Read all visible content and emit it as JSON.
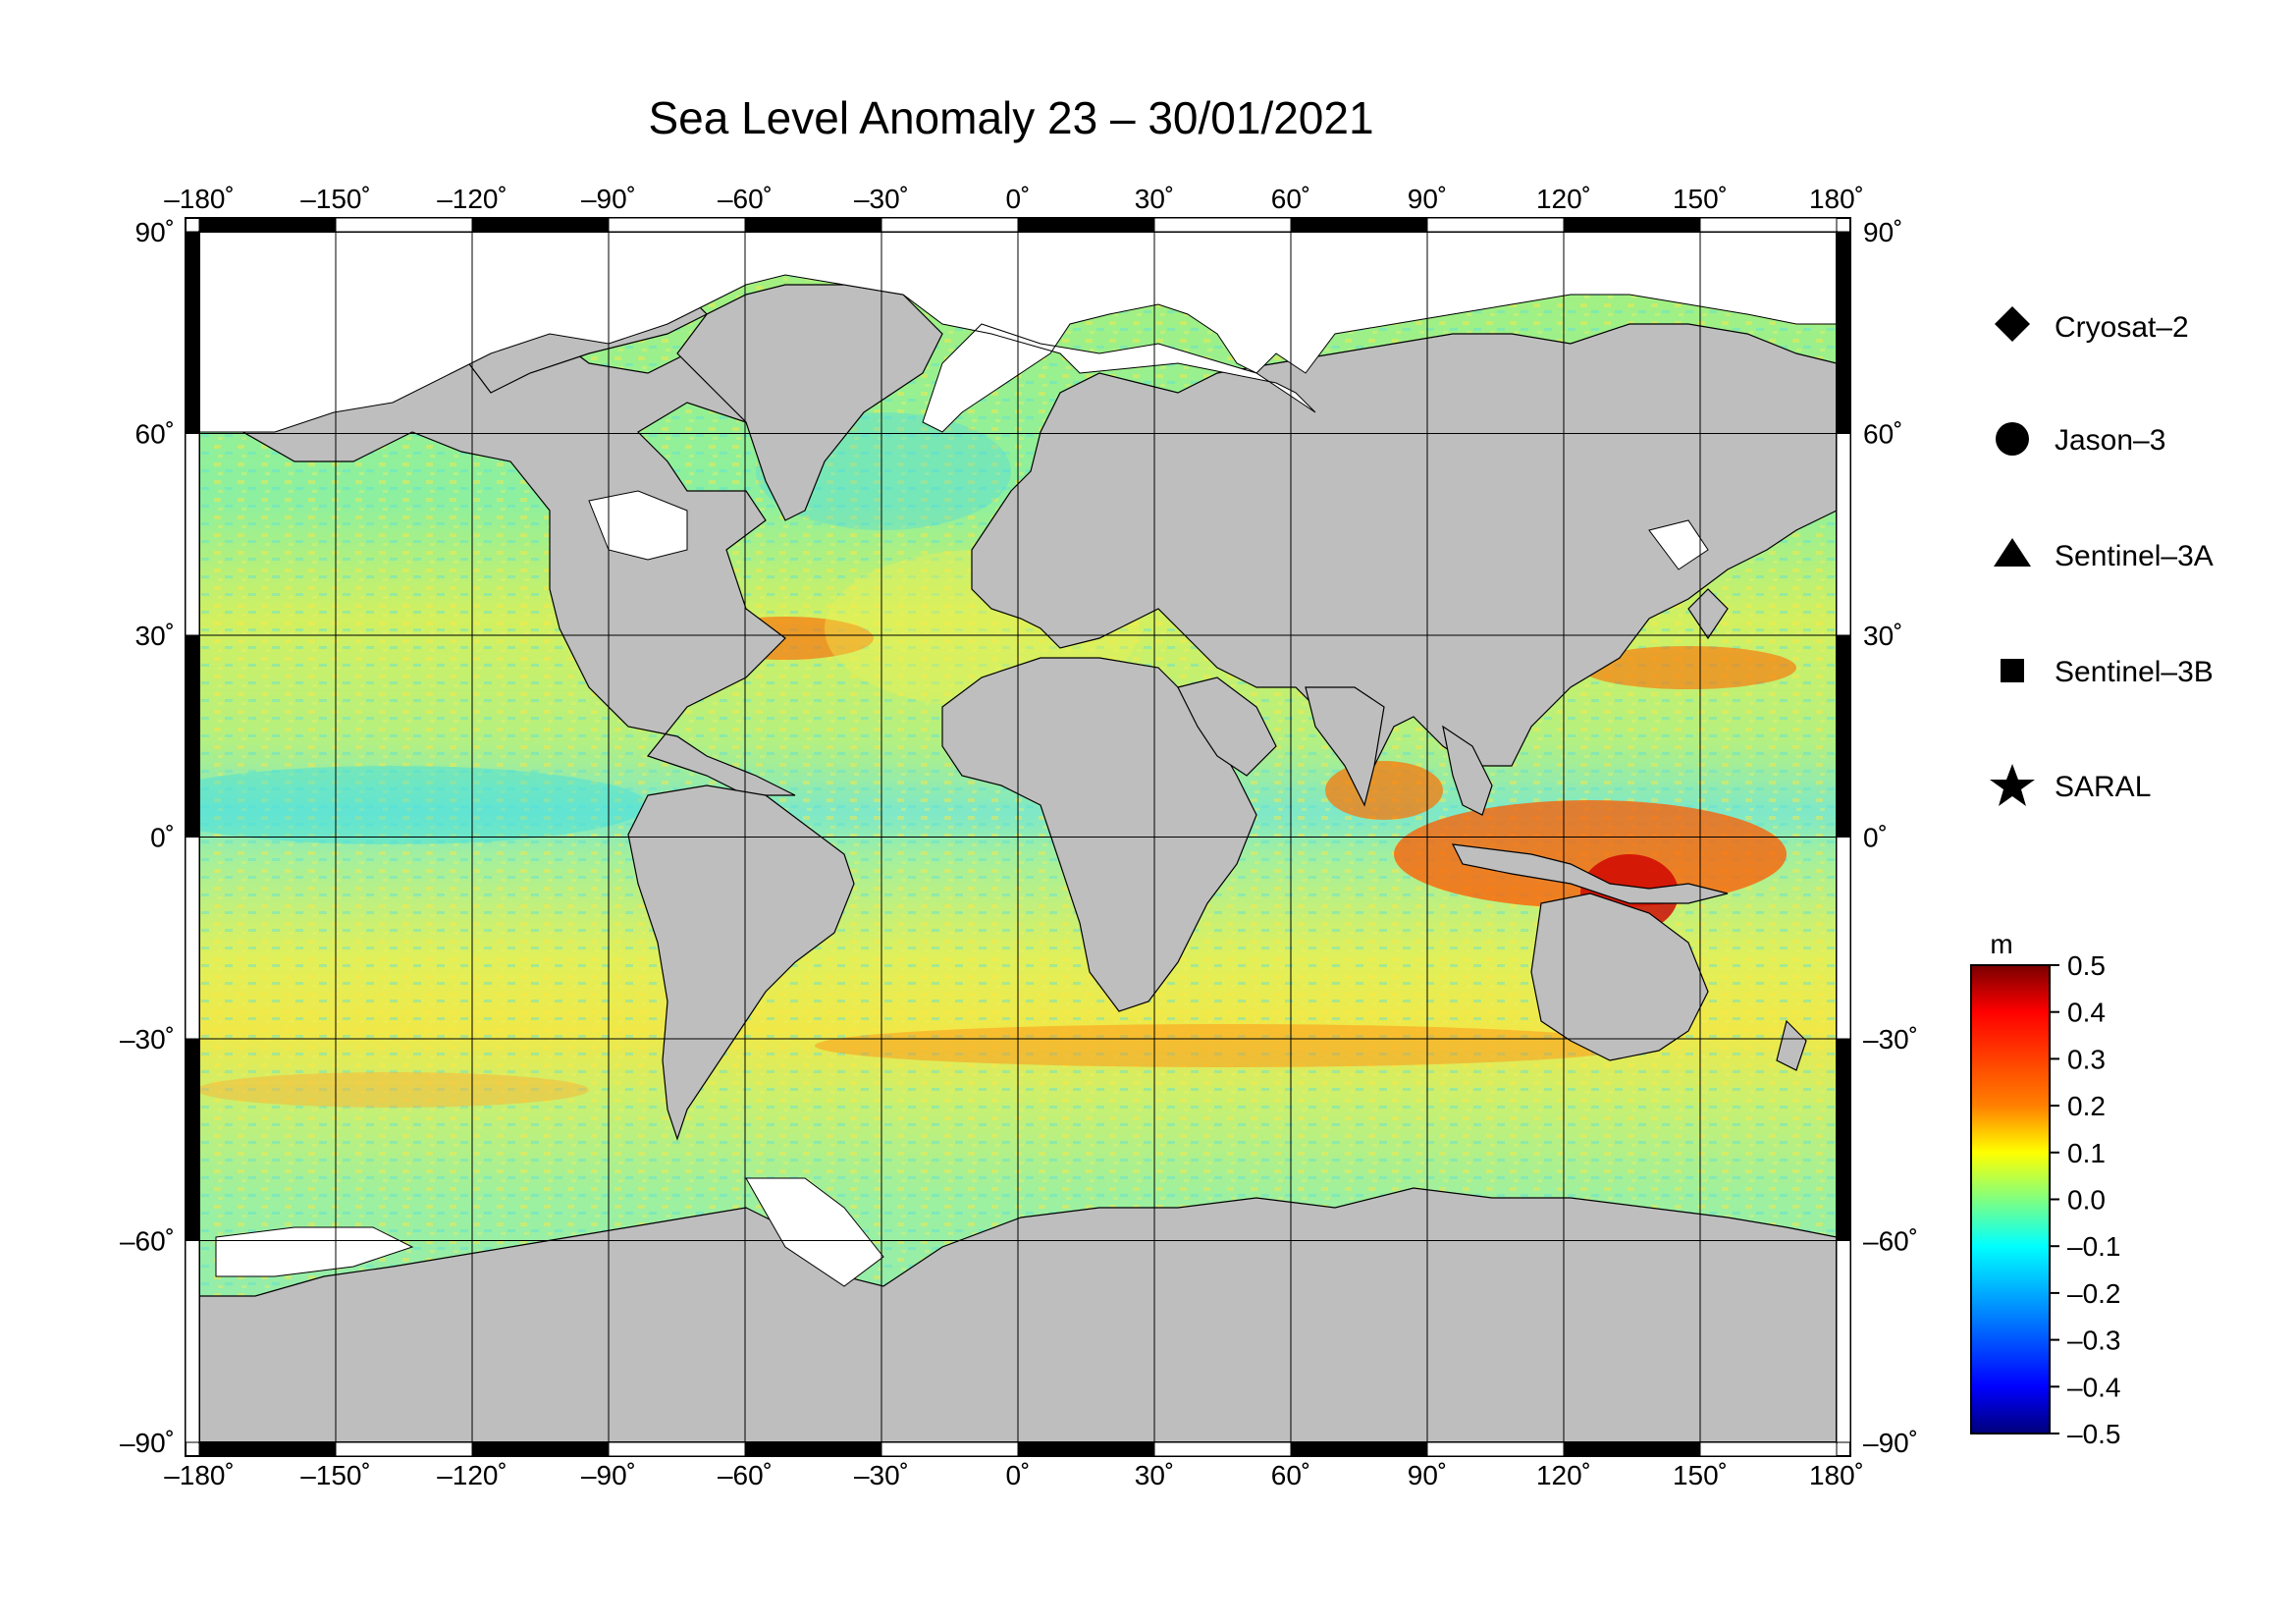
{
  "title": "Sea Level Anomaly 23 – 30/01/2021",
  "map": {
    "lon_ticks": [
      {
        "value": -180,
        "label": "–180˚"
      },
      {
        "value": -150,
        "label": "–150˚"
      },
      {
        "value": -120,
        "label": "–120˚"
      },
      {
        "value": -90,
        "label": "–90˚"
      },
      {
        "value": -60,
        "label": "–60˚"
      },
      {
        "value": -30,
        "label": "–30˚"
      },
      {
        "value": 0,
        "label": "0˚"
      },
      {
        "value": 30,
        "label": "30˚"
      },
      {
        "value": 60,
        "label": "60˚"
      },
      {
        "value": 90,
        "label": "90˚"
      },
      {
        "value": 120,
        "label": "120˚"
      },
      {
        "value": 150,
        "label": "150˚"
      },
      {
        "value": 180,
        "label": "180˚"
      }
    ],
    "lat_ticks": [
      {
        "value": 90,
        "label": "90˚"
      },
      {
        "value": 60,
        "label": "60˚"
      },
      {
        "value": 30,
        "label": "30˚"
      },
      {
        "value": 0,
        "label": "0˚"
      },
      {
        "value": -30,
        "label": "–30˚"
      },
      {
        "value": -60,
        "label": "–60˚"
      },
      {
        "value": -90,
        "label": "–90˚"
      }
    ],
    "lon_range": [
      -180,
      180
    ],
    "lat_range": [
      -90,
      90
    ],
    "graticule": true,
    "land_color": "#bebebe",
    "ice_color": "#ffffff"
  },
  "legend": {
    "items": [
      {
        "symbol": "diamond",
        "label": "Cryosat–2"
      },
      {
        "symbol": "circle",
        "label": "Jason–3"
      },
      {
        "symbol": "triangle",
        "label": "Sentinel–3A"
      },
      {
        "symbol": "square",
        "label": "Sentinel–3B"
      },
      {
        "symbol": "star",
        "label": "SARAL"
      }
    ]
  },
  "colorbar": {
    "unit": "m",
    "min": -0.5,
    "max": 0.5,
    "tick_labels": [
      "0.5",
      "0.4",
      "0.3",
      "0.2",
      "0.1",
      "0.0",
      "–0.1",
      "–0.2",
      "–0.3",
      "–0.4",
      "–0.5"
    ],
    "colors": [
      "#7a0000",
      "#ff0000",
      "#ff7f00",
      "#ffff00",
      "#7fff7f",
      "#00ffff",
      "#007fff",
      "#0000ff",
      "#00007a"
    ]
  }
}
